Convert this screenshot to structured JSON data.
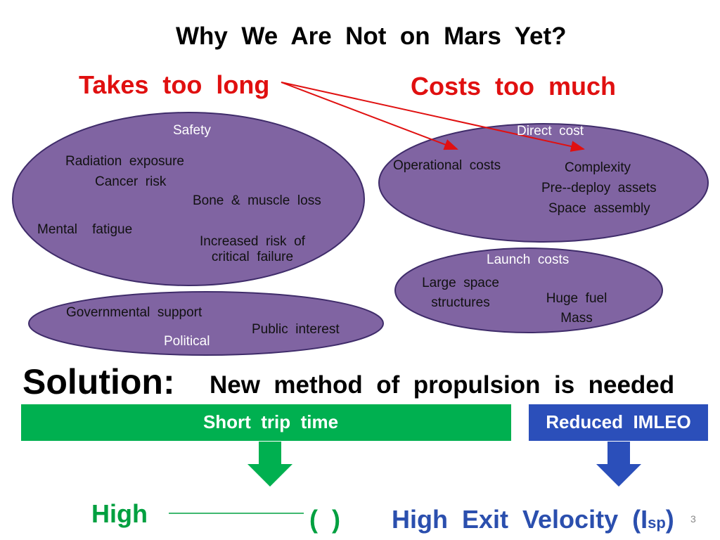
{
  "title": "Why  We  Are  Not  on  Mars  Yet?",
  "problems": {
    "time": "Takes  too  long",
    "cost": "Costs  too  much"
  },
  "safety": {
    "label": "Safety",
    "items": [
      "Radiation  exposure",
      "Cancer  risk",
      "Bone  &  muscle  loss",
      "Mental    fatigue"
    ],
    "failure": [
      "Increased  risk  of",
      "critical  failure"
    ]
  },
  "political": {
    "items": [
      "Governmental  support",
      "Public  interest",
      "Political"
    ]
  },
  "direct_cost": {
    "label": "Direct  cost",
    "items": [
      "Operational  costs",
      "Complexity",
      "Pre--deploy  assets",
      "Space  assembly"
    ]
  },
  "launch_costs": {
    "label": "Launch  costs",
    "structures": [
      "Large  space",
      "structures"
    ],
    "fuel": [
      "Huge  fuel",
      "Mass"
    ]
  },
  "solution": {
    "label": "Solution:",
    "text": "New  method  of  propulsion  is  needed"
  },
  "bars": {
    "green": "Short  trip  time",
    "blue": "Reduced  IMLEO"
  },
  "bottom": {
    "high": "High",
    "parens": "(  )",
    "velocity": "High  Exit  Velocity  (I",
    "subscript": "sp",
    "close": ")"
  },
  "page_number": "3"
}
